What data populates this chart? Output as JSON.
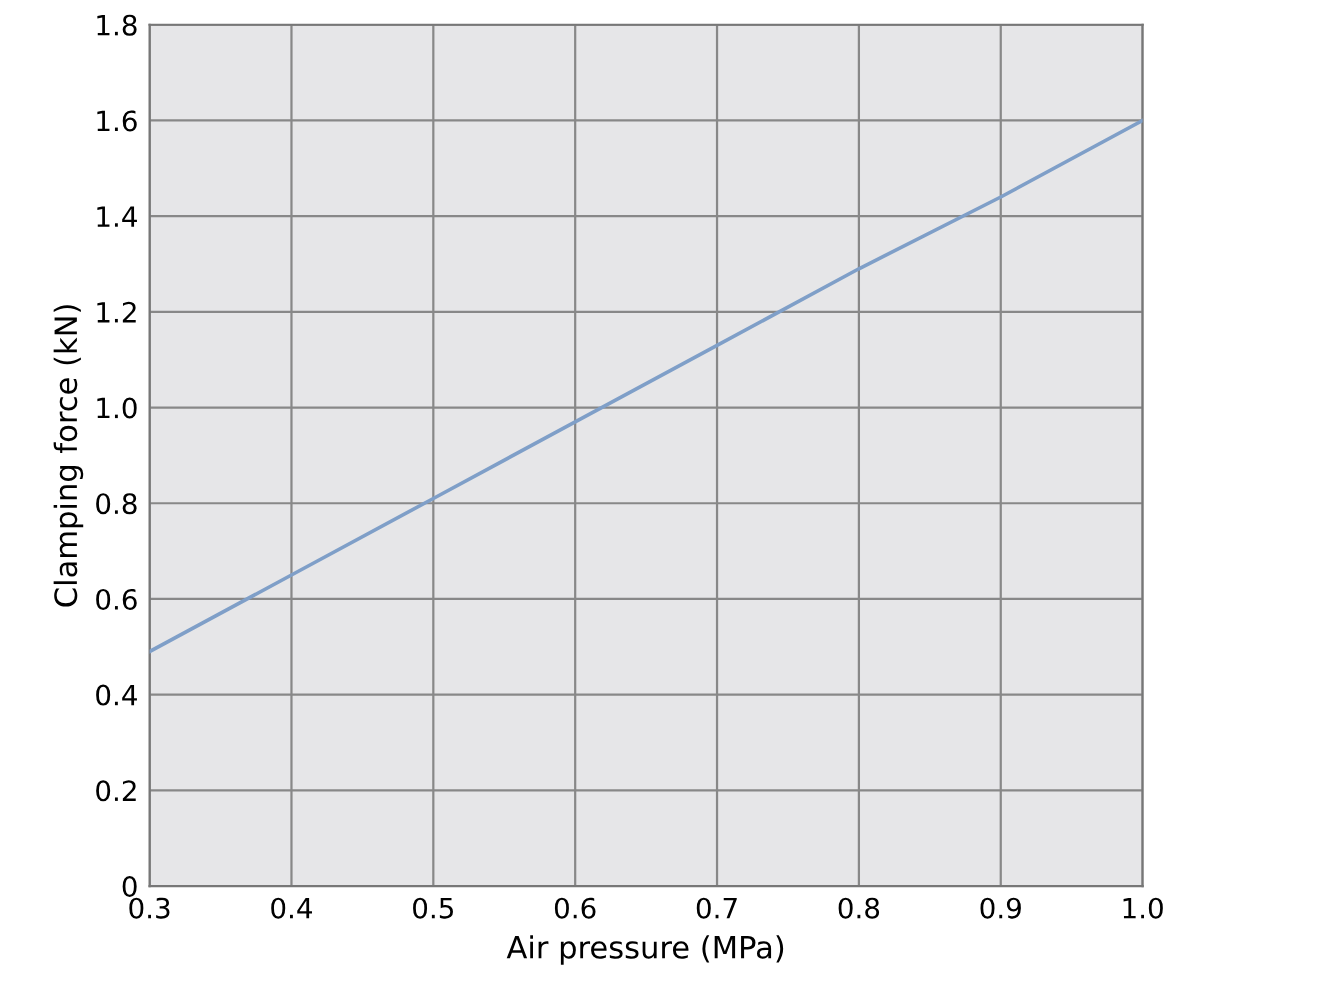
{
  "chart_data": {
    "type": "line",
    "xlabel": "Air pressure (MPa)",
    "ylabel": "Clamping force (kN)",
    "x": [
      0.3,
      0.4,
      0.5,
      0.6,
      0.7,
      0.8,
      0.9,
      1.0
    ],
    "series": [
      {
        "color": "#7f9fc8",
        "values": [
          0.49,
          0.65,
          0.81,
          0.97,
          1.13,
          1.29,
          1.44,
          1.6
        ]
      }
    ],
    "xlim": [
      0.3,
      1.0
    ],
    "xticks": [
      0.3,
      0.4,
      0.5,
      0.6,
      0.7,
      0.8,
      0.9,
      {
        "value": 1,
        "label": "1.0"
      }
    ],
    "ylim": [
      0,
      1.8
    ],
    "yticks": [
      0,
      0.2,
      0.4,
      0.6,
      0.8,
      {
        "value": 1,
        "label": "1.0"
      },
      1.2,
      1.4,
      1.6,
      1.8
    ],
    "grid": true,
    "marker": "none",
    "line_style": "solid"
  }
}
